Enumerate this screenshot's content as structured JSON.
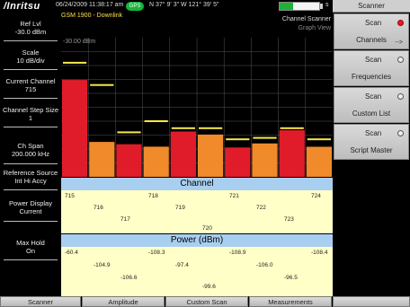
{
  "status": {
    "logo": "/Inritsu",
    "datetime": "06/24/2009 11:38:17 am",
    "gps": "GPS",
    "coords": "N 37° 9' 3\" W 121° 39' 5\"",
    "battery_pct": 35,
    "battery_suffix": "s"
  },
  "right_panel": {
    "title": "Scanner",
    "buttons": [
      {
        "label": "Scan",
        "sublabel": "Channels",
        "selected": true,
        "arrow": "-->"
      },
      {
        "label": "Scan",
        "sublabel": "Frequencies",
        "selected": false
      },
      {
        "label": "Scan",
        "sublabel": "Custom List",
        "selected": false
      },
      {
        "label": "Scan",
        "sublabel": "Script Master",
        "selected": false
      }
    ]
  },
  "left_panel": {
    "ref_lvl": {
      "label": "Ref Lvl",
      "value": "-30.0 dBm"
    },
    "scale": {
      "label": "Scale",
      "value": "10 dB/div"
    },
    "current_channel": {
      "label": "Current Channel",
      "value": "715"
    },
    "step_size": {
      "label": "Channel Step Size",
      "value": "1"
    },
    "span": {
      "label": "Ch Span",
      "value": "200.000 kHz"
    },
    "ref_source": {
      "label": "Reference Source",
      "value": "Int Hi Accy"
    },
    "power_display": {
      "label": "Power Display",
      "value": "Current"
    },
    "max_hold": {
      "label": "Max Hold",
      "value": "On"
    }
  },
  "plot": {
    "mode": "GSM 1900 - Downlink",
    "app": "Channel Scanner",
    "view": "Graph View",
    "ref_label": "-30.00 dBm",
    "channel_title": "Channel",
    "power_title": "Power (dBm)",
    "colors": {
      "strong": "#e11c2a",
      "normal": "#f08a2a",
      "hold": "#f6e84a",
      "grid": "#555555"
    }
  },
  "chart_data": {
    "type": "bar",
    "ylim": [
      -130,
      -30
    ],
    "grid": true,
    "channels": [
      "715",
      "716",
      "717",
      "718",
      "719",
      "720",
      "721",
      "722",
      "723",
      "724"
    ],
    "power": [
      -60.4,
      -104.9,
      -106.6,
      -108.3,
      -97.4,
      -99.6,
      -108.9,
      -106.0,
      -96.5,
      -108.4
    ],
    "power_labels": [
      "-60.4",
      "-104.9",
      "-106.6",
      "-108.3",
      "-97.4",
      "-99.6",
      "-108.9",
      "-106.0",
      "-96.5",
      "-108.4"
    ],
    "max_hold": [
      -48.0,
      -64.0,
      -98.0,
      -90.0,
      -95.0,
      -95.0,
      -103.0,
      -102.0,
      -95.0,
      -103.0
    ],
    "strong": [
      true,
      false,
      true,
      false,
      true,
      false,
      true,
      false,
      true,
      false
    ]
  },
  "bottom_bar": [
    "Scanner",
    "Amplitude",
    "Custom Scan",
    "Measurements",
    ""
  ]
}
